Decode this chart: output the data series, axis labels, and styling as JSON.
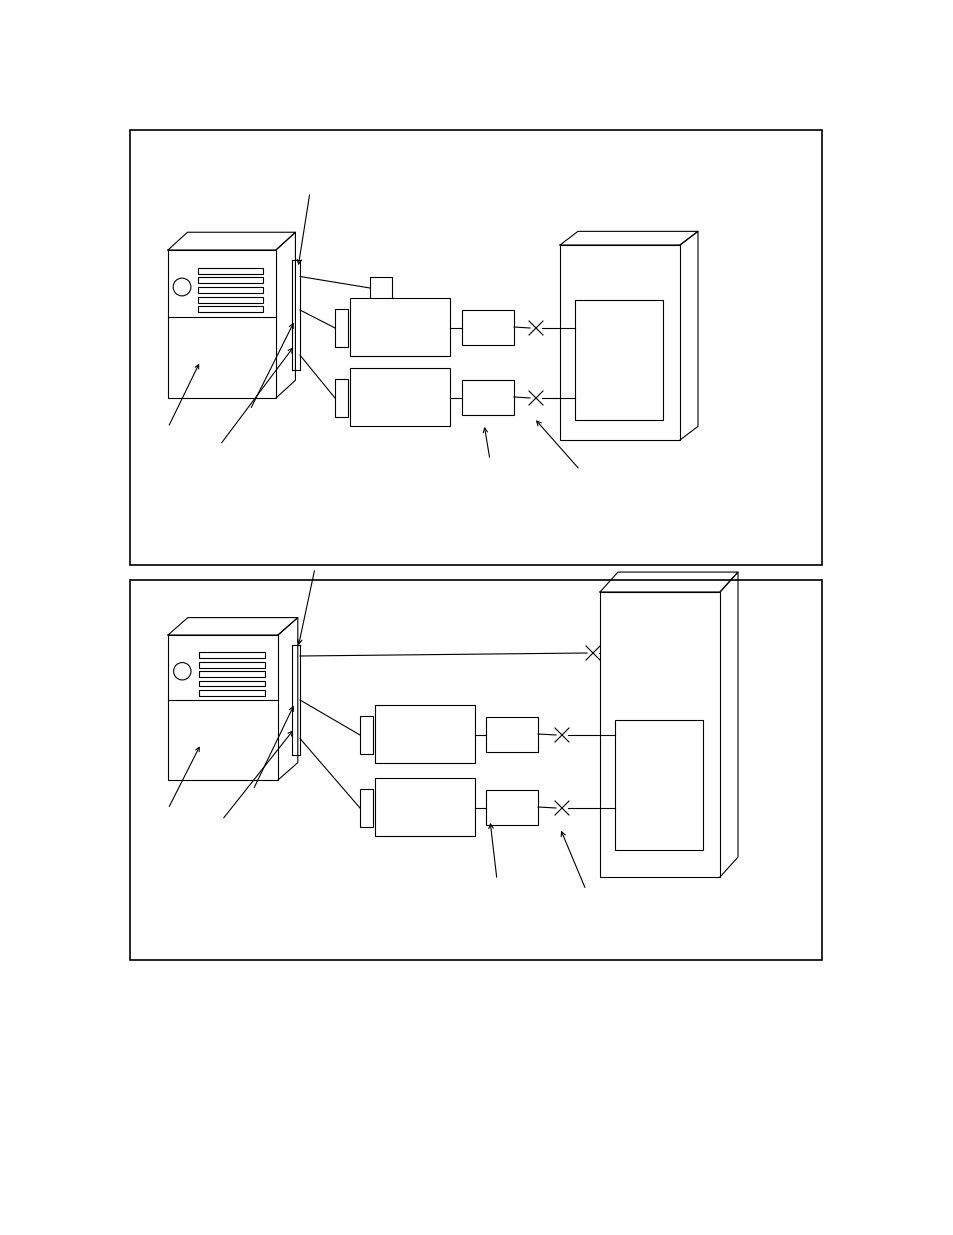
{
  "bg_color": "#ffffff",
  "line_color": "#000000",
  "fig_w": 9.54,
  "fig_h": 12.35,
  "dpi": 100
}
